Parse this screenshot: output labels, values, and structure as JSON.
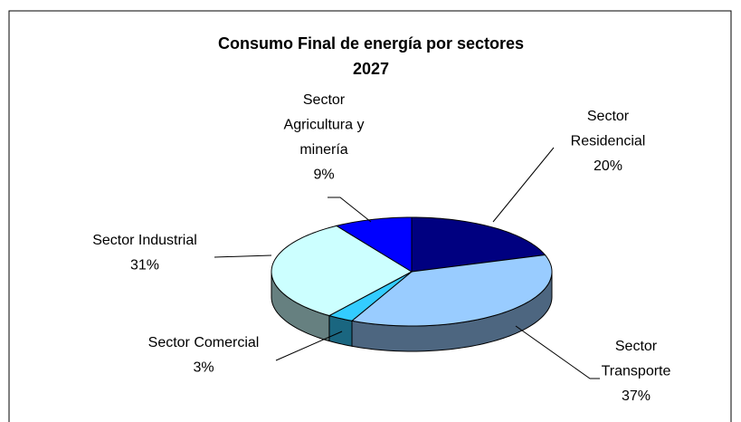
{
  "chart_data": {
    "type": "pie",
    "title": "Consumo Final de energía por sectores",
    "subtitle": "2027",
    "categories": [
      "Sector Residencial",
      "Sector Transporte",
      "Sector Comercial",
      "Sector Industrial",
      "Sector Agricultura y minería"
    ],
    "values": [
      20,
      37,
      3,
      31,
      9
    ],
    "value_labels": [
      "20%",
      "37%",
      "3%",
      "31%",
      "9%"
    ],
    "colors": [
      "#000080",
      "#99ccff",
      "#33ccff",
      "#ccffff",
      "#0000ff"
    ]
  }
}
